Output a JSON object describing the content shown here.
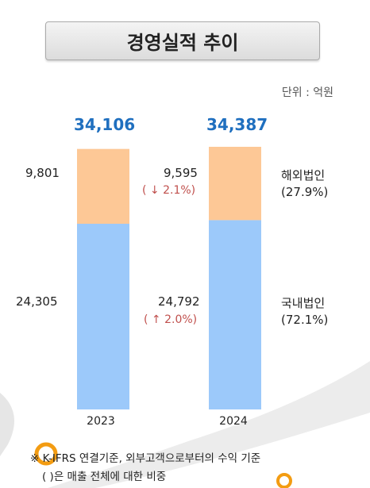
{
  "title": "경영실적 추이",
  "unit_label": "단위 : 억원",
  "chart_data": {
    "type": "bar",
    "stacked": true,
    "categories": [
      "2023",
      "2024"
    ],
    "totals": [
      "34,106",
      "34,387"
    ],
    "ylim": [
      0,
      34387
    ],
    "series": [
      {
        "name": "국내법인",
        "share": "(72.1%)",
        "color": "#9cc9fa",
        "values": [
          24305,
          24792
        ],
        "labels": [
          "24,305",
          "24,792"
        ],
        "change": [
          "",
          "( ↑ 2.0%)"
        ]
      },
      {
        "name": "해외법인",
        "share": "(27.9%)",
        "color": "#fdc896",
        "values": [
          9801,
          9595
        ],
        "labels": [
          "9,801",
          "9,595"
        ],
        "change": [
          "",
          "( ↓ 2.1%)"
        ]
      }
    ]
  },
  "notes": [
    "※ K-IFRS 연결기준, 외부고객으로부터의 수익 기준",
    "( )은 매출 전체에 대한 비중"
  ]
}
